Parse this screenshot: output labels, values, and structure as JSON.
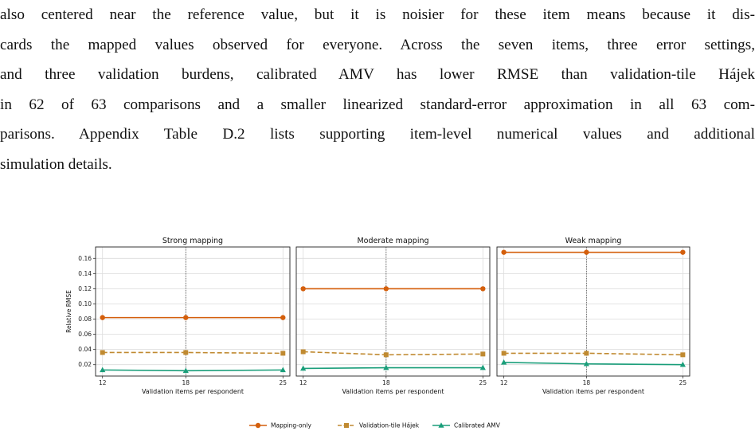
{
  "paragraph": {
    "lines": [
      "also centered near the reference value, but it is noisier for these item means because it dis-",
      "cards the mapped values observed for everyone. Across the seven items, three error settings,",
      "and three validation burdens, calibrated AMV has lower RMSE than validation-tile Hájek",
      "in 62 of 63 comparisons and a smaller linearized standard-error approximation in all 63 com-",
      "parisons. Appendix Table D.2 lists supporting item-level numerical values and additional",
      "simulation details."
    ]
  },
  "colors": {
    "mapping_only": "#d45f0c",
    "validation_tile": "#c08a31",
    "calibrated": "#1a9e7a",
    "grid": "#dcdcdc"
  },
  "chart_data": [
    {
      "type": "line",
      "title": "Strong mapping",
      "xlabel": "Validation items per respondent",
      "ylabel": "Relative RMSE",
      "x": [
        12,
        18,
        25
      ],
      "xticks": [
        "12",
        "18",
        "25"
      ],
      "yticks": [
        "0.02",
        "0.04",
        "0.06",
        "0.08",
        "0.10",
        "0.12",
        "0.14",
        "0.16"
      ],
      "ylim": [
        0.005,
        0.175
      ],
      "grid": true,
      "reference_line_x": 18,
      "series": [
        {
          "name": "Mapping-only",
          "values": [
            0.082,
            0.082,
            0.082
          ]
        },
        {
          "name": "Validation-tile Hájek",
          "values": [
            0.036,
            0.036,
            0.035
          ]
        },
        {
          "name": "Calibrated AMV",
          "values": [
            0.013,
            0.012,
            0.013
          ]
        }
      ]
    },
    {
      "type": "line",
      "title": "Moderate mapping",
      "xlabel": "Validation items per respondent",
      "ylabel": "",
      "x": [
        12,
        18,
        25
      ],
      "xticks": [
        "12",
        "18",
        "25"
      ],
      "ylim": [
        0.005,
        0.175
      ],
      "grid": true,
      "reference_line_x": 18,
      "series": [
        {
          "name": "Mapping-only",
          "values": [
            0.12,
            0.12,
            0.12
          ]
        },
        {
          "name": "Validation-tile Hájek",
          "values": [
            0.037,
            0.033,
            0.034
          ]
        },
        {
          "name": "Calibrated AMV",
          "values": [
            0.015,
            0.016,
            0.016
          ]
        }
      ]
    },
    {
      "type": "line",
      "title": "Weak mapping",
      "xlabel": "Validation items per respondent",
      "ylabel": "",
      "x": [
        12,
        18,
        25
      ],
      "xticks": [
        "12",
        "18",
        "25"
      ],
      "ylim": [
        0.005,
        0.175
      ],
      "grid": true,
      "reference_line_x": 18,
      "series": [
        {
          "name": "Mapping-only",
          "values": [
            0.168,
            0.168,
            0.168
          ]
        },
        {
          "name": "Validation-tile Hájek",
          "values": [
            0.035,
            0.035,
            0.033
          ]
        },
        {
          "name": "Calibrated AMV",
          "values": [
            0.023,
            0.021,
            0.02
          ]
        }
      ]
    }
  ],
  "legend": {
    "placement": "bottom-center",
    "items": [
      "Mapping-only",
      "Validation-tile Hájek",
      "Calibrated AMV"
    ]
  }
}
